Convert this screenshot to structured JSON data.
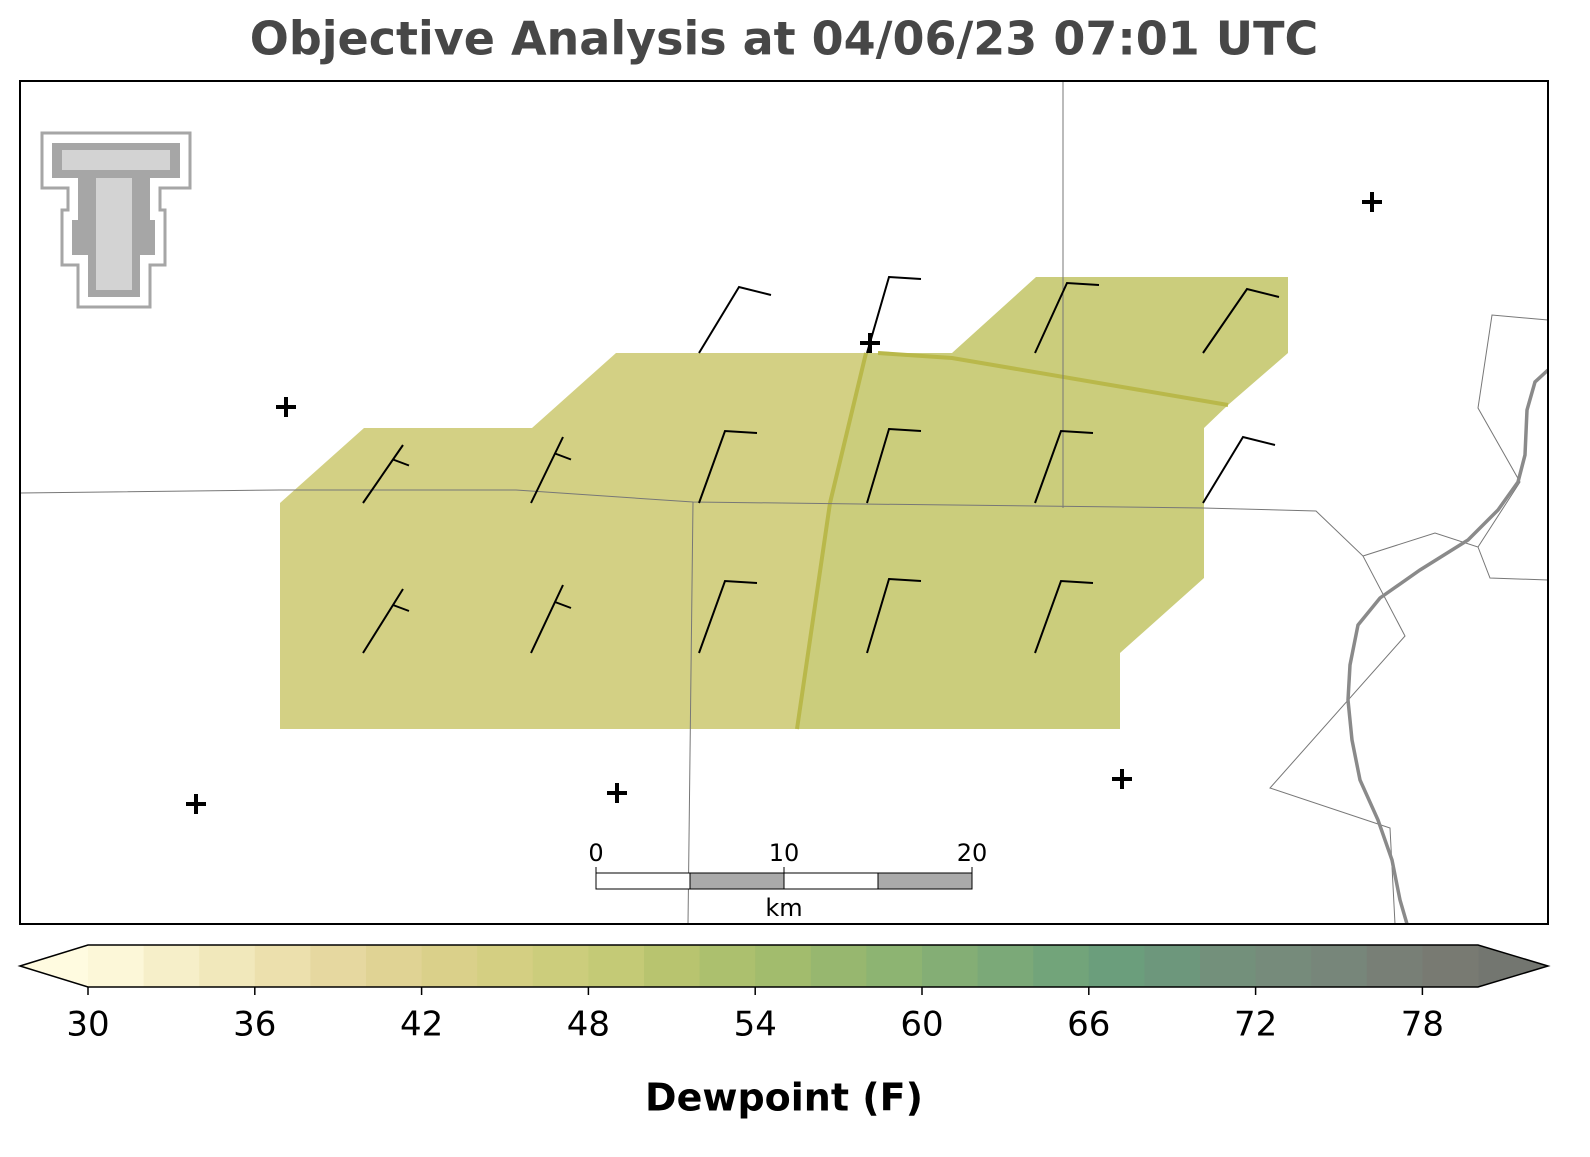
{
  "title": "Objective Analysis at 04/06/23 07:01 UTC",
  "scale_bar": {
    "ticks": [
      0,
      10,
      20
    ],
    "unit": "km"
  },
  "colorbar": {
    "label": "Dewpoint (F)",
    "lim": [
      30,
      80
    ],
    "ticks": [
      30,
      36,
      42,
      48,
      54,
      60,
      66,
      72,
      78
    ],
    "colors": [
      "#fcf7d8",
      "#f6efc9",
      "#f1e8bb",
      "#ece0ad",
      "#e6d8a0",
      "#e0d394",
      "#dad08a",
      "#d4cf82",
      "#cccd7c",
      "#c4ca76",
      "#b8c46f",
      "#acc06e",
      "#a2bc6d",
      "#97b76f",
      "#8db472",
      "#84ae75",
      "#7ba978",
      "#72a47a",
      "#6b9e7c",
      "#6d977c",
      "#73907b",
      "#768b7b",
      "#77867a",
      "#787f76",
      "#787a72"
    ],
    "extend_colors": [
      "#fffbe0",
      "#737670"
    ]
  }
}
